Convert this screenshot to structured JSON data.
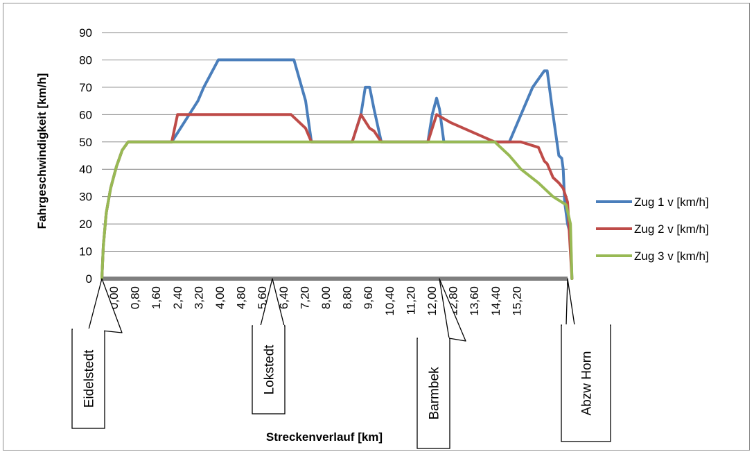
{
  "chart_data": {
    "type": "line",
    "xlabel": "Streckenverlauf [km]",
    "ylabel": "Fahrgeschwindigkeit [km/h]",
    "xlim": [
      0,
      16
    ],
    "ylim": [
      0,
      90
    ],
    "yticks": [
      0,
      10,
      20,
      30,
      40,
      50,
      60,
      70,
      80,
      90
    ],
    "xtick_labels": [
      "0,00",
      "0,80",
      "1,60",
      "2,40",
      "3,20",
      "4,00",
      "4,80",
      "5,60",
      "6,40",
      "7,20",
      "8,00",
      "8,80",
      "9,60",
      "10,40",
      "11,20",
      "12,00",
      "12,80",
      "13,60",
      "14,40",
      "15,20"
    ],
    "grid": "horizontal",
    "legend_position": "right",
    "series": [
      {
        "name": "Zug 1 v [km/h]",
        "color": "#4a7ebb",
        "x": [
          0,
          0.05,
          0.15,
          0.3,
          0.5,
          0.7,
          0.9,
          1.5,
          1.9,
          2.2,
          2.4,
          2.7,
          3.0,
          3.3,
          3.5,
          4.0,
          5.0,
          6.0,
          6.5,
          6.6,
          7.0,
          7.2,
          7.5,
          8.0,
          8.3,
          8.6,
          8.9,
          9.05,
          9.2,
          9.35,
          9.6,
          9.9,
          11.0,
          11.2,
          11.35,
          11.5,
          11.6,
          11.75,
          12.0,
          13.0,
          13.6,
          14.0,
          14.4,
          14.8,
          15.2,
          15.3,
          15.5,
          15.7,
          15.8,
          15.85,
          15.9,
          16.0,
          16.1,
          16.15
        ],
        "values": [
          0,
          12,
          24,
          33,
          41,
          47,
          50,
          50,
          50,
          50,
          50,
          55,
          60,
          65,
          70,
          80,
          80,
          80,
          80,
          80,
          65,
          50,
          50,
          50,
          50,
          50,
          60,
          70,
          70,
          62,
          50,
          50,
          50,
          50,
          60,
          66,
          62,
          50,
          50,
          50,
          50,
          50,
          60,
          70,
          76,
          76,
          60,
          45,
          44,
          40,
          28,
          20,
          16,
          0
        ]
      },
      {
        "name": "Zug 2 v [km/h]",
        "color": "#be4b48",
        "x": [
          0,
          0.05,
          0.15,
          0.3,
          0.5,
          0.7,
          0.9,
          2.0,
          2.4,
          2.6,
          3.0,
          5.0,
          6.0,
          6.5,
          7.0,
          7.2,
          8.0,
          8.3,
          8.6,
          8.9,
          9.2,
          9.35,
          9.6,
          10.5,
          10.6,
          11.0,
          11.2,
          11.5,
          12.0,
          13.5,
          14.0,
          14.4,
          15.0,
          15.2,
          15.3,
          15.5,
          15.7,
          15.85,
          16.0,
          16.15
        ],
        "values": [
          0,
          12,
          24,
          33,
          41,
          47,
          50,
          50,
          50,
          60,
          60,
          60,
          60,
          60,
          55,
          50,
          50,
          50,
          50,
          60,
          55,
          54,
          50,
          50,
          50,
          50,
          50,
          60,
          57,
          50,
          50,
          50,
          48,
          43,
          42,
          37,
          35,
          33,
          28,
          0
        ]
      },
      {
        "name": "Zug 3 v [km/h]",
        "color": "#98b954",
        "x": [
          0,
          0.05,
          0.15,
          0.3,
          0.5,
          0.7,
          0.9,
          2.0,
          4.0,
          6.0,
          8.0,
          10.0,
          12.0,
          13.5,
          14.0,
          14.4,
          15.0,
          15.5,
          15.95,
          16.1,
          16.15
        ],
        "values": [
          0,
          12,
          24,
          33,
          41,
          47,
          50,
          50,
          50,
          50,
          50,
          50,
          50,
          50,
          45,
          40,
          35,
          30,
          27,
          20,
          0
        ]
      }
    ],
    "station_markers": [
      {
        "label": "Eidelstedt",
        "km": 0.0
      },
      {
        "label": "Lokstedt",
        "km": 6.0
      },
      {
        "label": "Barmbek",
        "km": 11.7
      },
      {
        "label": "Abzw Horn",
        "km": 16.1
      }
    ]
  }
}
